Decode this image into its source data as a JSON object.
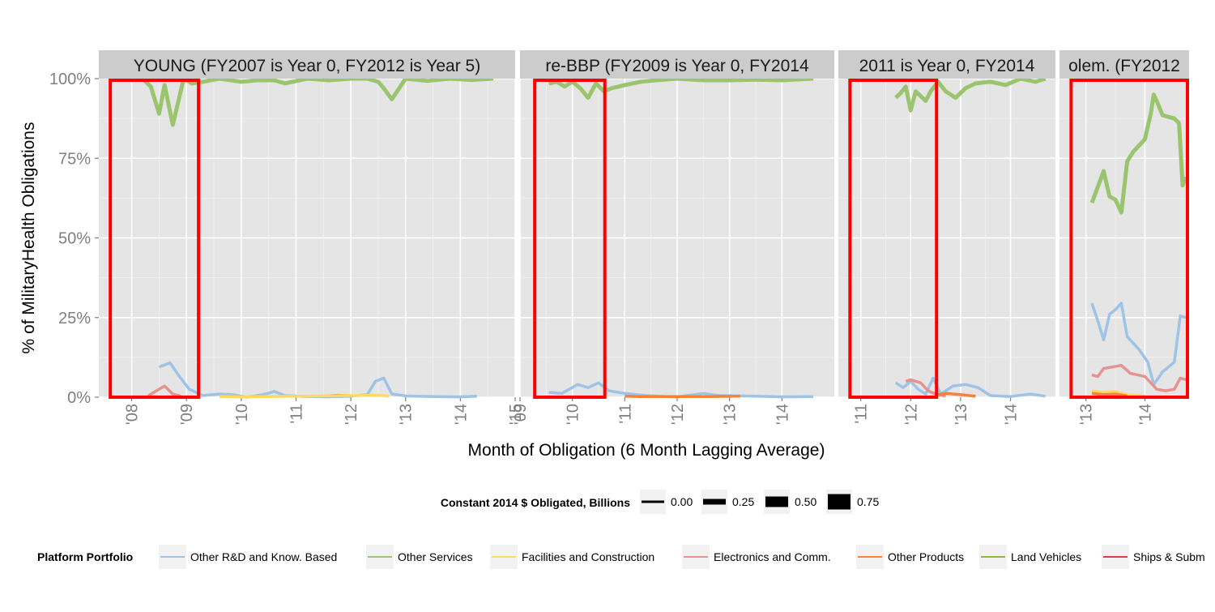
{
  "chart_data": {
    "type": "line",
    "y_axis": {
      "label": "% of  MilitaryHealth  Obligations",
      "ylim": [
        0,
        1
      ],
      "ticks": [
        0,
        0.25,
        0.5,
        0.75,
        1
      ],
      "tick_labels": [
        "0%",
        "25%",
        "50%",
        "75%",
        "100%"
      ]
    },
    "x_axis": {
      "label": "Month of Obligation (6 Month Lagging Average)"
    },
    "grid": true,
    "legend_position": "bottom",
    "size_legend": {
      "title": "Constant 2014 $ Obligated, Billions",
      "values": [
        0,
        0.25,
        0.5,
        0.75
      ],
      "labels": [
        "0.00",
        "0.25",
        "0.50",
        "0.75"
      ]
    },
    "color_legend": {
      "title": "Platform Portfolio",
      "entries": [
        {
          "label": "Other R&D and Know. Based",
          "color": "#9dc3e6"
        },
        {
          "label": "Other Services",
          "color": "#9bc46f"
        },
        {
          "label": "Facilities and Construction",
          "color": "#ffd966"
        },
        {
          "label": "Electronics and Comm.",
          "color": "#e6928e"
        },
        {
          "label": "Other Products",
          "color": "#f4823b"
        },
        {
          "label": "Land Vehicles",
          "color": "#8fb84a"
        },
        {
          "label": "Ships & Subm"
        }
      ]
    },
    "panels": [
      {
        "strip": "YOUNG (FY2007 is Year 0, FY2012 is Year 5)",
        "xlim": [
          2007.4,
          2015.0
        ],
        "ticks": [
          2008,
          2009,
          2010,
          2011,
          2012,
          2013,
          2014,
          2015
        ],
        "tick_labels": [
          "'08",
          "'09",
          "'10",
          "'11",
          "'12",
          "'13",
          "'14",
          "'15"
        ],
        "highlight": [
          2007.58,
          2009.25
        ],
        "series": [
          {
            "name": "Other Services",
            "color": "#9bc46f",
            "x": [
              2008.2,
              2008.35,
              2008.5,
              2008.6,
              2008.75,
              2008.95,
              2009.1,
              2009.3,
              2009.6,
              2010.0,
              2010.3,
              2010.6,
              2010.8,
              2011.2,
              2011.6,
              2012.0,
              2012.3,
              2012.5,
              2012.6,
              2012.75,
              2013.0,
              2013.4,
              2013.8,
              2014.2,
              2014.6
            ],
            "y": [
              1.0,
              0.975,
              0.89,
              0.98,
              0.855,
              1.0,
              0.985,
              0.99,
              1.0,
              0.99,
              0.995,
              0.995,
              0.985,
              1.0,
              0.995,
              1.0,
              1.0,
              0.99,
              0.97,
              0.935,
              1.0,
              0.993,
              1.0,
              0.996,
              1.0
            ]
          },
          {
            "name": "Other R&D and Know. Based",
            "color": "#9dc3e6",
            "x": [
              2008.5,
              2008.7,
              2008.85,
              2009.05,
              2009.3,
              2009.6,
              2009.85,
              2010.1,
              2010.4,
              2010.6,
              2010.8,
              2011.2,
              2011.6,
              2012.0,
              2012.3,
              2012.45,
              2012.6,
              2012.75,
              2013.0,
              2013.5,
              2014.0,
              2014.3
            ],
            "y": [
              0.095,
              0.108,
              0.07,
              0.025,
              0.005,
              0.01,
              0.008,
              0.0,
              0.008,
              0.018,
              0.005,
              0.002,
              0.001,
              0.003,
              0.008,
              0.05,
              0.06,
              0.01,
              0.004,
              0.002,
              0.001,
              0.003
            ]
          },
          {
            "name": "Electronics and Comm.",
            "color": "#e6928e",
            "x": [
              2008.3,
              2008.45,
              2008.6,
              2008.75,
              2008.9
            ],
            "y": [
              0.004,
              0.02,
              0.035,
              0.01,
              0.003
            ]
          },
          {
            "name": "Other Products",
            "color": "#f4823b",
            "x": [
              2011.5,
              2011.75,
              2012.0
            ],
            "y": [
              0.003,
              0.006,
              0.004
            ]
          },
          {
            "name": "Facilities and Construction",
            "color": "#ffd966",
            "x": [
              2009.6,
              2010.0,
              2012.5,
              2012.7
            ],
            "y": [
              0.002,
              0.001,
              0.006,
              0.003
            ]
          }
        ]
      },
      {
        "strip": "re-BBP (FY2009 is Year 0, FY2014",
        "xlim": [
          2009.0,
          2015.0
        ],
        "ticks": [
          2009,
          2010,
          2011,
          2012,
          2013,
          2014
        ],
        "tick_labels": [
          "'09",
          "'10",
          "'11",
          "'12",
          "'13",
          "'14"
        ],
        "highlight": [
          2009.25,
          2010.65
        ],
        "series": [
          {
            "name": "Other Services",
            "color": "#9bc46f",
            "x": [
              2009.55,
              2009.7,
              2009.85,
              2010.0,
              2010.15,
              2010.3,
              2010.45,
              2010.6,
              2010.75,
              2011.0,
              2011.3,
              2011.6,
              2012.0,
              2012.5,
              2013.0,
              2013.5,
              2014.0,
              2014.6
            ],
            "y": [
              0.985,
              0.99,
              0.975,
              0.99,
              0.97,
              0.94,
              0.985,
              0.96,
              0.97,
              0.98,
              0.99,
              0.995,
              1.0,
              0.995,
              0.995,
              0.997,
              0.995,
              1.0
            ]
          },
          {
            "name": "Other R&D and Know. Based",
            "color": "#9dc3e6",
            "x": [
              2009.55,
              2009.8,
              2010.1,
              2010.3,
              2010.5,
              2010.7,
              2011.0,
              2011.4,
              2011.8,
              2012.0,
              2012.5,
              2012.8,
              2013.5,
              2014.0,
              2014.6
            ],
            "y": [
              0.015,
              0.012,
              0.04,
              0.03,
              0.045,
              0.02,
              0.012,
              0.005,
              0.002,
              0.001,
              0.012,
              0.005,
              0.003,
              0.001,
              0.002
            ]
          },
          {
            "name": "Other Products",
            "color": "#f4823b",
            "x": [
              2011.0,
              2011.3,
              2012.6,
              2013.2
            ],
            "y": [
              0.003,
              0.002,
              0.002,
              0.003
            ]
          }
        ]
      },
      {
        "strip": "2011 is Year 0, FY2014",
        "xlim": [
          2010.55,
          2014.9
        ],
        "ticks": [
          2011,
          2012,
          2013,
          2014
        ],
        "tick_labels": [
          "'11",
          "'12",
          "'13",
          "'14"
        ],
        "highlight": [
          2010.75,
          2012.55
        ],
        "series": [
          {
            "name": "Other Services",
            "color": "#9bc46f",
            "x": [
              2011.7,
              2011.8,
              2011.9,
              2012.0,
              2012.1,
              2012.2,
              2012.3,
              2012.4,
              2012.55,
              2012.7,
              2012.9,
              2013.1,
              2013.3,
              2013.6,
              2013.9,
              2014.2,
              2014.5,
              2014.7
            ],
            "y": [
              0.94,
              0.955,
              0.975,
              0.9,
              0.96,
              0.945,
              0.93,
              0.96,
              0.99,
              0.96,
              0.94,
              0.97,
              0.985,
              0.99,
              0.98,
              1.0,
              0.99,
              1.0
            ]
          },
          {
            "name": "Other R&D and Know. Based",
            "color": "#9dc3e6",
            "x": [
              2011.7,
              2011.85,
              2012.0,
              2012.15,
              2012.3,
              2012.45,
              2012.6,
              2012.85,
              2013.1,
              2013.35,
              2013.6,
              2014.0,
              2014.4,
              2014.7
            ],
            "y": [
              0.045,
              0.03,
              0.05,
              0.025,
              0.01,
              0.06,
              0.01,
              0.035,
              0.04,
              0.03,
              0.005,
              0.002,
              0.01,
              0.003
            ]
          },
          {
            "name": "Electronics and Comm.",
            "color": "#e6928e",
            "x": [
              2011.9,
              2012.0,
              2012.1,
              2012.2,
              2012.35,
              2012.5,
              2012.7
            ],
            "y": [
              0.05,
              0.055,
              0.05,
              0.045,
              0.02,
              0.01,
              0.003
            ]
          },
          {
            "name": "Other Products",
            "color": "#f4823b",
            "x": [
              2012.5,
              2012.7,
              2013.0,
              2013.3
            ],
            "y": [
              0.006,
              0.012,
              0.008,
              0.003
            ]
          }
        ]
      },
      {
        "strip": "olem. (FY2012",
        "xlim": [
          2012.55,
          2014.75
        ],
        "ticks": [
          2013,
          2014
        ],
        "tick_labels": [
          "'13",
          "'14"
        ],
        "highlight": [
          2012.72,
          2014.75
        ],
        "series": [
          {
            "name": "Other Services",
            "color": "#9bc46f",
            "x": [
              2013.1,
              2013.2,
              2013.3,
              2013.4,
              2013.5,
              2013.6,
              2013.7,
              2013.8,
              2014.0,
              2014.1,
              2014.15,
              2014.2,
              2014.3,
              2014.4,
              2014.5,
              2014.58,
              2014.64,
              2014.7
            ],
            "y": [
              0.61,
              0.66,
              0.71,
              0.63,
              0.62,
              0.58,
              0.74,
              0.77,
              0.81,
              0.89,
              0.95,
              0.93,
              0.885,
              0.88,
              0.875,
              0.86,
              0.665,
              0.69
            ]
          },
          {
            "name": "Other R&D and Know. Based",
            "color": "#9dc3e6",
            "x": [
              2013.1,
              2013.2,
              2013.3,
              2013.4,
              2013.5,
              2013.6,
              2013.7,
              2013.9,
              2014.05,
              2014.15,
              2014.3,
              2014.5,
              2014.6,
              2014.7
            ],
            "y": [
              0.295,
              0.24,
              0.18,
              0.26,
              0.275,
              0.295,
              0.19,
              0.15,
              0.11,
              0.04,
              0.08,
              0.11,
              0.255,
              0.25
            ]
          },
          {
            "name": "Electronics and Comm.",
            "color": "#e6928e",
            "x": [
              2013.1,
              2013.2,
              2013.3,
              2013.45,
              2013.6,
              2013.75,
              2014.0,
              2014.2,
              2014.35,
              2014.5,
              2014.6,
              2014.7
            ],
            "y": [
              0.07,
              0.065,
              0.09,
              0.095,
              0.1,
              0.075,
              0.065,
              0.025,
              0.02,
              0.025,
              0.06,
              0.055
            ]
          },
          {
            "name": "Facilities and Construction",
            "color": "#ffd966",
            "x": [
              2013.1,
              2013.3,
              2013.5,
              2013.7,
              2014.0
            ],
            "y": [
              0.02,
              0.015,
              0.018,
              0.008,
              0.004
            ]
          },
          {
            "name": "Other Products",
            "color": "#f4823b",
            "x": [
              2013.1,
              2013.3,
              2013.5,
              2013.7
            ],
            "y": [
              0.012,
              0.008,
              0.01,
              0.004
            ]
          }
        ]
      }
    ]
  }
}
